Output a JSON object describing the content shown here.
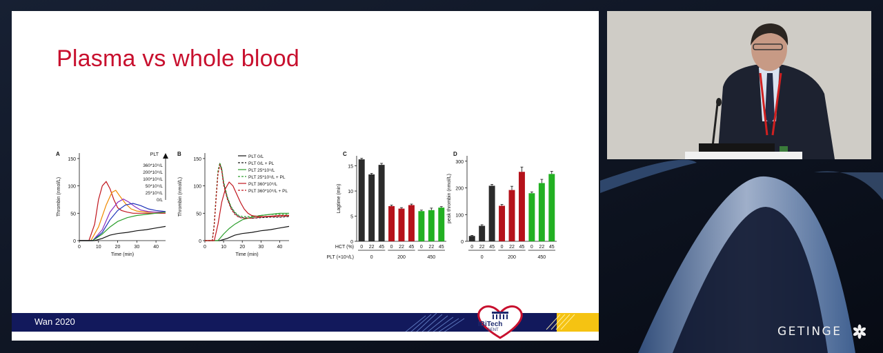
{
  "slide": {
    "title": "Plasma vs whole blood",
    "footer_text": "Wan 2020",
    "logo_text": "IBiTech",
    "logo_subtext": "GENT"
  },
  "brand": {
    "name": "GETINGE"
  },
  "colors": {
    "title": "#c8102e",
    "footer": "#12195c",
    "red_bar": "#b5121b",
    "green_bar": "#22b022",
    "black_bar": "#2b2b2b"
  },
  "chart_data": [
    {
      "type": "line",
      "panel": "A",
      "xlabel": "Time (min)",
      "ylabel": "Thrombin (nmol/L)",
      "xticks": [
        0,
        10,
        20,
        30,
        40
      ],
      "yticks": [
        0,
        50,
        100,
        150
      ],
      "xlim": [
        0,
        45
      ],
      "ylim": [
        0,
        160
      ],
      "legend_title": "PLT",
      "series": [
        {
          "name": "360*10⁹/L",
          "color": "#c0141c",
          "x": [
            0,
            5,
            8,
            10,
            12,
            14,
            16,
            18,
            20,
            22,
            25,
            28,
            30,
            35,
            40,
            45
          ],
          "y": [
            0,
            0,
            30,
            75,
            100,
            108,
            95,
            75,
            60,
            55,
            52,
            50,
            50,
            50,
            50,
            50
          ]
        },
        {
          "name": "200*10⁹/L",
          "color": "#f08a00",
          "x": [
            0,
            6,
            10,
            14,
            17,
            19,
            21,
            24,
            27,
            30,
            35,
            40,
            45
          ],
          "y": [
            0,
            0,
            25,
            65,
            88,
            92,
            82,
            68,
            58,
            54,
            52,
            52,
            52
          ]
        },
        {
          "name": "100*10⁹/L",
          "color": "#8a2bbf",
          "x": [
            0,
            7,
            12,
            16,
            20,
            23,
            26,
            29,
            32,
            36,
            40,
            45
          ],
          "y": [
            0,
            0,
            20,
            52,
            70,
            76,
            70,
            62,
            56,
            53,
            52,
            52
          ]
        },
        {
          "name": "50*10⁹/L",
          "color": "#1a2fb8",
          "x": [
            0,
            7,
            12,
            16,
            20,
            24,
            28,
            32,
            36,
            40,
            45
          ],
          "y": [
            0,
            0,
            15,
            38,
            55,
            65,
            68,
            64,
            58,
            55,
            53
          ]
        },
        {
          "name": "25*10⁹/L",
          "color": "#2b9e2b",
          "x": [
            0,
            7,
            12,
            16,
            20,
            25,
            30,
            35,
            40,
            45
          ],
          "y": [
            0,
            0,
            12,
            25,
            35,
            42,
            46,
            48,
            50,
            52
          ]
        },
        {
          "name": "0/L",
          "color": "#111111",
          "x": [
            0,
            8,
            12,
            16,
            20,
            25,
            30,
            35,
            40,
            45
          ],
          "y": [
            0,
            0,
            4,
            10,
            13,
            15,
            18,
            20,
            23,
            26
          ]
        }
      ]
    },
    {
      "type": "line",
      "panel": "B",
      "xlabel": "Time (min)",
      "ylabel": "Thrombin (nmol/L)",
      "xticks": [
        0,
        10,
        20,
        30,
        40
      ],
      "yticks": [
        0,
        50,
        100,
        150
      ],
      "xlim": [
        0,
        45
      ],
      "ylim": [
        0,
        160
      ],
      "series": [
        {
          "name": "PLT 0/L",
          "color": "#111111",
          "dash": false,
          "x": [
            0,
            8,
            12,
            16,
            20,
            25,
            30,
            35,
            40,
            45
          ],
          "y": [
            0,
            0,
            4,
            10,
            13,
            15,
            18,
            20,
            23,
            26
          ]
        },
        {
          "name": "PLT 0/L + PL",
          "color": "#111111",
          "dash": true,
          "x": [
            0,
            4,
            5,
            6,
            7,
            8,
            9,
            10,
            12,
            14,
            16,
            18,
            20,
            25,
            30,
            35,
            40,
            45
          ],
          "y": [
            0,
            0,
            30,
            80,
            125,
            140,
            130,
            105,
            78,
            60,
            50,
            44,
            42,
            41,
            42,
            43,
            43,
            44
          ]
        },
        {
          "name": "PLT 25*10⁹/L",
          "color": "#2b9e2b",
          "dash": false,
          "x": [
            0,
            7,
            10,
            13,
            16,
            20,
            25,
            30,
            35,
            40,
            45
          ],
          "y": [
            0,
            0,
            12,
            22,
            30,
            38,
            43,
            46,
            48,
            50,
            50
          ]
        },
        {
          "name": "PLT 25*10⁹/L + PL",
          "color": "#2b9e2b",
          "dash": true,
          "x": [
            0,
            4,
            5,
            6,
            7,
            8,
            9,
            10,
            12,
            14,
            16,
            18,
            20,
            25,
            30,
            35,
            40,
            45
          ],
          "y": [
            0,
            0,
            32,
            82,
            128,
            142,
            132,
            108,
            80,
            62,
            52,
            46,
            44,
            44,
            46,
            48,
            48,
            48
          ]
        },
        {
          "name": "PLT 360*10⁹/L",
          "color": "#c0141c",
          "dash": false,
          "x": [
            0,
            5,
            7,
            9,
            11,
            13,
            15,
            17,
            19,
            21,
            23,
            25,
            28,
            32,
            36,
            40,
            45
          ],
          "y": [
            0,
            0,
            30,
            70,
            95,
            107,
            100,
            85,
            70,
            58,
            50,
            46,
            44,
            44,
            45,
            46,
            46
          ]
        },
        {
          "name": "PLT 360*10⁹/L + PL",
          "color": "#c0141c",
          "dash": true,
          "x": [
            0,
            4,
            5,
            6,
            7,
            8,
            9,
            10,
            12,
            14,
            16,
            18,
            20,
            25,
            30,
            35,
            40,
            45
          ],
          "y": [
            0,
            0,
            28,
            78,
            122,
            138,
            128,
            102,
            76,
            58,
            48,
            43,
            41,
            41,
            43,
            44,
            44,
            45
          ]
        }
      ]
    },
    {
      "type": "bar",
      "panel": "C",
      "ylabel": "Lagtime (min)",
      "yticks": [
        0,
        5,
        10,
        15
      ],
      "ylim": [
        0,
        17
      ],
      "hct_label": "HCT (%)",
      "plt_label": "PLT (×10⁹/L)",
      "categories": [
        "0",
        "22",
        "45",
        "0",
        "22",
        "45",
        "0",
        "22",
        "45"
      ],
      "groups": [
        "0",
        "200",
        "450"
      ],
      "values": [
        16.3,
        13.3,
        15.2,
        7.0,
        6.5,
        7.2,
        6.0,
        6.2,
        6.7
      ],
      "errors": [
        0.2,
        0.2,
        0.3,
        0.2,
        0.2,
        0.2,
        0.2,
        0.4,
        0.2
      ],
      "colors": [
        "#2b2b2b",
        "#2b2b2b",
        "#2b2b2b",
        "#b5121b",
        "#b5121b",
        "#b5121b",
        "#22b022",
        "#22b022",
        "#22b022"
      ]
    },
    {
      "type": "bar",
      "panel": "D",
      "ylabel": "peak thrombin (nmol/L)",
      "yticks": [
        0,
        100,
        200,
        300
      ],
      "ylim": [
        0,
        320
      ],
      "categories": [
        "0",
        "22",
        "45",
        "0",
        "22",
        "45",
        "0",
        "22",
        "45"
      ],
      "groups": [
        "0",
        "200",
        "450"
      ],
      "values": [
        20,
        58,
        208,
        133,
        192,
        260,
        180,
        218,
        252
      ],
      "errors": [
        2,
        4,
        5,
        5,
        14,
        18,
        5,
        14,
        10
      ],
      "colors": [
        "#2b2b2b",
        "#2b2b2b",
        "#2b2b2b",
        "#b5121b",
        "#b5121b",
        "#b5121b",
        "#22b022",
        "#22b022",
        "#22b022"
      ]
    }
  ]
}
